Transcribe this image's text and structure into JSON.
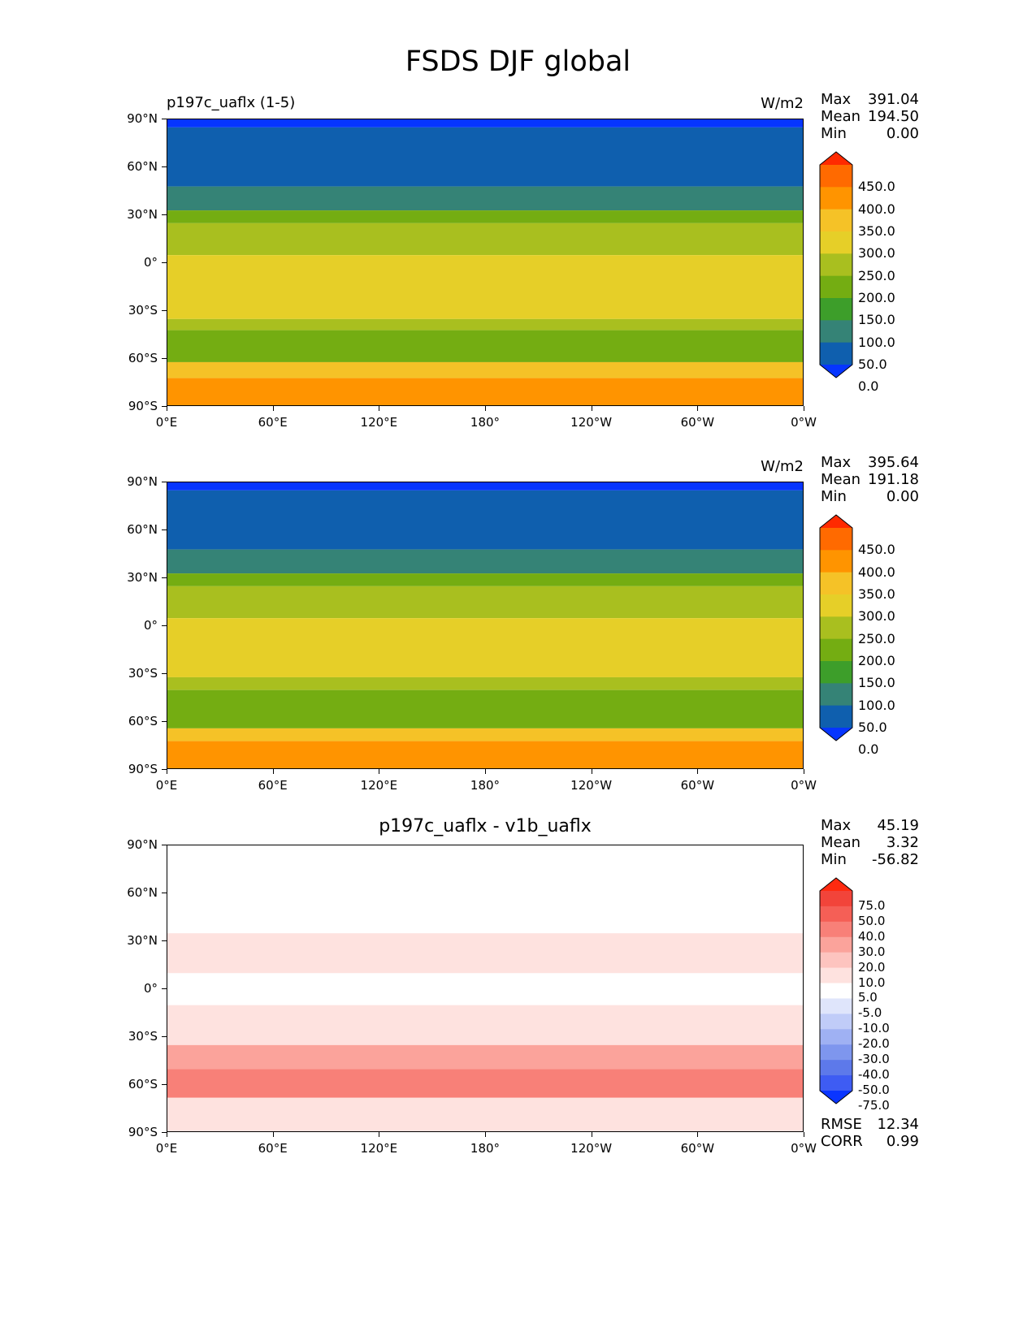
{
  "title": "FSDS DJF global",
  "panels": [
    {
      "id": "test",
      "left_label": "p197c_uaflx (1-5)",
      "center_title": "",
      "units": "W/m2",
      "stats": [
        {
          "label": "Max",
          "value": "391.04"
        },
        {
          "label": "Mean",
          "value": "194.50"
        },
        {
          "label": "Min",
          "value": "0.00"
        }
      ],
      "extra_stats": [],
      "colorbar": {
        "labels": [
          "450.0",
          "400.0",
          "350.0",
          "300.0",
          "250.0",
          "200.0",
          "150.0",
          "100.0",
          "50.0",
          "0.0"
        ],
        "colors": [
          "#ff2a00",
          "#ff6a00",
          "#ff9400",
          "#f5c227",
          "#e6cf28",
          "#a9bf1f",
          "#74ad12",
          "#3d9e2a",
          "#358376",
          "#0f5fae",
          "#0635ff"
        ]
      },
      "bands": [
        {
          "lat_top": 90,
          "lat_bottom": 85,
          "color": "#0635ff"
        },
        {
          "lat_top": 85,
          "lat_bottom": 48,
          "color": "#0f5fae"
        },
        {
          "lat_top": 48,
          "lat_bottom": 33,
          "color": "#358376"
        },
        {
          "lat_top": 33,
          "lat_bottom": 25,
          "color": "#74ad12"
        },
        {
          "lat_top": 25,
          "lat_bottom": 5,
          "color": "#a9bf1f"
        },
        {
          "lat_top": 5,
          "lat_bottom": -35,
          "color": "#e6cf28"
        },
        {
          "lat_top": -35,
          "lat_bottom": -42,
          "color": "#a9bf1f"
        },
        {
          "lat_top": -42,
          "lat_bottom": -62,
          "color": "#74ad12"
        },
        {
          "lat_top": -62,
          "lat_bottom": -72,
          "color": "#f5c227"
        },
        {
          "lat_top": -72,
          "lat_bottom": -90,
          "color": "#ff9400"
        }
      ]
    },
    {
      "id": "reference",
      "left_label": "",
      "center_title": "",
      "units": "W/m2",
      "stats": [
        {
          "label": "Max",
          "value": "395.64"
        },
        {
          "label": "Mean",
          "value": "191.18"
        },
        {
          "label": "Min",
          "value": "0.00"
        }
      ],
      "extra_stats": [],
      "colorbar": {
        "labels": [
          "450.0",
          "400.0",
          "350.0",
          "300.0",
          "250.0",
          "200.0",
          "150.0",
          "100.0",
          "50.0",
          "0.0"
        ],
        "colors": [
          "#ff2a00",
          "#ff6a00",
          "#ff9400",
          "#f5c227",
          "#e6cf28",
          "#a9bf1f",
          "#74ad12",
          "#3d9e2a",
          "#358376",
          "#0f5fae",
          "#0635ff"
        ]
      },
      "bands": [
        {
          "lat_top": 90,
          "lat_bottom": 85,
          "color": "#0635ff"
        },
        {
          "lat_top": 85,
          "lat_bottom": 48,
          "color": "#0f5fae"
        },
        {
          "lat_top": 48,
          "lat_bottom": 33,
          "color": "#358376"
        },
        {
          "lat_top": 33,
          "lat_bottom": 25,
          "color": "#74ad12"
        },
        {
          "lat_top": 25,
          "lat_bottom": 5,
          "color": "#a9bf1f"
        },
        {
          "lat_top": 5,
          "lat_bottom": -32,
          "color": "#e6cf28"
        },
        {
          "lat_top": -32,
          "lat_bottom": -40,
          "color": "#a9bf1f"
        },
        {
          "lat_top": -40,
          "lat_bottom": -64,
          "color": "#74ad12"
        },
        {
          "lat_top": -64,
          "lat_bottom": -72,
          "color": "#f5c227"
        },
        {
          "lat_top": -72,
          "lat_bottom": -90,
          "color": "#ff9400"
        }
      ]
    },
    {
      "id": "difference",
      "left_label": "",
      "center_title": "p197c_uaflx - v1b_uaflx",
      "units": "",
      "stats": [
        {
          "label": "Max",
          "value": "45.19"
        },
        {
          "label": "Mean",
          "value": "3.32"
        },
        {
          "label": "Min",
          "value": "-56.82"
        }
      ],
      "extra_stats": [
        {
          "label": "RMSE",
          "value": "12.34"
        },
        {
          "label": "CORR",
          "value": "0.99"
        }
      ],
      "colorbar": {
        "labels": [
          "75.0",
          "50.0",
          "40.0",
          "30.0",
          "20.0",
          "10.0",
          "5.0",
          "-5.0",
          "-10.0",
          "-20.0",
          "-30.0",
          "-40.0",
          "-50.0",
          "-75.0"
        ],
        "colors": [
          "#ff2a10",
          "#f2443a",
          "#f55f56",
          "#f88078",
          "#fba39b",
          "#fdc4bf",
          "#fee2df",
          "#ffffff",
          "#dfe5fb",
          "#c0ccf8",
          "#9fb1f3",
          "#7e96ee",
          "#5d79ea",
          "#3e5cf3",
          "#0a35ff"
        ]
      },
      "bands": [
        {
          "lat_top": 90,
          "lat_bottom": 35,
          "color": "#ffffff"
        },
        {
          "lat_top": 35,
          "lat_bottom": 10,
          "color": "#fee2df"
        },
        {
          "lat_top": 10,
          "lat_bottom": -10,
          "color": "#ffffff"
        },
        {
          "lat_top": -10,
          "lat_bottom": -35,
          "color": "#fee2df"
        },
        {
          "lat_top": -35,
          "lat_bottom": -50,
          "color": "#fba39b"
        },
        {
          "lat_top": -50,
          "lat_bottom": -68,
          "color": "#f88078"
        },
        {
          "lat_top": -68,
          "lat_bottom": -90,
          "color": "#fee2df"
        }
      ]
    }
  ],
  "axes": {
    "lat_ticks": [
      "90°N",
      "60°N",
      "30°N",
      "0°",
      "30°S",
      "60°S",
      "90°S"
    ],
    "lat_values": [
      90,
      60,
      30,
      0,
      -30,
      -60,
      -90
    ],
    "lon_ticks": [
      "0°E",
      "60°E",
      "120°E",
      "180°",
      "120°W",
      "60°W",
      "0°W"
    ],
    "lon_values": [
      0,
      60,
      120,
      180,
      240,
      300,
      360
    ]
  },
  "chart_data": [
    {
      "type": "heatmap",
      "title": "FSDS DJF global",
      "subtitle": "p197c_uaflx (1-5)",
      "units": "W/m2",
      "x_ticks": [
        "0°E",
        "60°E",
        "120°E",
        "180°",
        "120°W",
        "60°W",
        "0°W"
      ],
      "y_ticks": [
        "90°N",
        "60°N",
        "30°N",
        "0°",
        "30°S",
        "60°S",
        "90°S"
      ],
      "xlim": [
        0,
        360
      ],
      "ylim": [
        -90,
        90
      ],
      "levels": [
        0,
        50,
        100,
        150,
        200,
        250,
        300,
        350,
        400,
        450
      ],
      "stats": {
        "max": 391.04,
        "mean": 194.5,
        "min": 0.0
      }
    },
    {
      "type": "heatmap",
      "units": "W/m2",
      "x_ticks": [
        "0°E",
        "60°E",
        "120°E",
        "180°",
        "120°W",
        "60°W",
        "0°W"
      ],
      "y_ticks": [
        "90°N",
        "60°N",
        "30°N",
        "0°",
        "30°S",
        "60°S",
        "90°S"
      ],
      "xlim": [
        0,
        360
      ],
      "ylim": [
        -90,
        90
      ],
      "levels": [
        0,
        50,
        100,
        150,
        200,
        250,
        300,
        350,
        400,
        450
      ],
      "stats": {
        "max": 395.64,
        "mean": 191.18,
        "min": 0.0
      }
    },
    {
      "type": "heatmap",
      "title": "p197c_uaflx - v1b_uaflx",
      "x_ticks": [
        "0°E",
        "60°E",
        "120°E",
        "180°",
        "120°W",
        "60°W",
        "0°W"
      ],
      "y_ticks": [
        "90°N",
        "60°N",
        "30°N",
        "0°",
        "30°S",
        "60°S",
        "90°S"
      ],
      "xlim": [
        0,
        360
      ],
      "ylim": [
        -90,
        90
      ],
      "levels": [
        -75,
        -50,
        -40,
        -30,
        -20,
        -10,
        -5,
        5,
        10,
        20,
        30,
        40,
        50,
        75
      ],
      "stats": {
        "max": 45.19,
        "mean": 3.32,
        "min": -56.82,
        "rmse": 12.34,
        "corr": 0.99
      }
    }
  ]
}
